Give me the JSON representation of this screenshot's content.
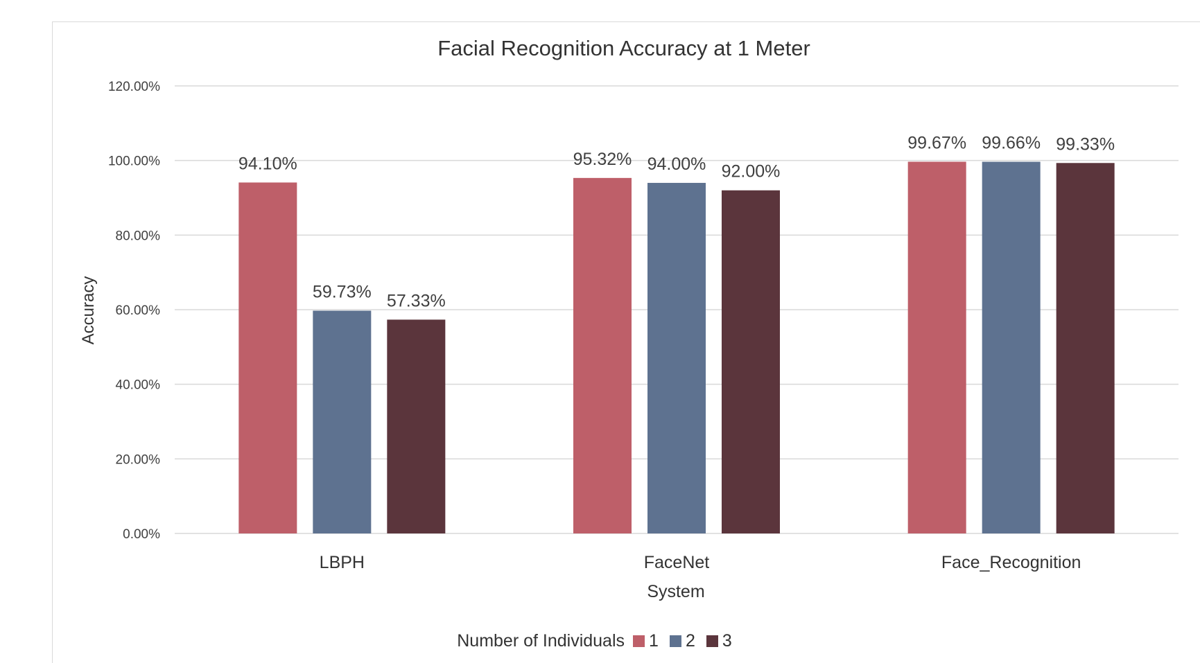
{
  "chart_data": {
    "type": "bar",
    "title": "Facial Recognition Accuracy at 1 Meter",
    "xlabel": "System",
    "ylabel": "Accuracy",
    "categories": [
      "LBPH",
      "FaceNet",
      "Face_Recognition"
    ],
    "series": [
      {
        "name": "1",
        "color": "#be5f69",
        "values": [
          94.1,
          95.32,
          99.67
        ],
        "labels": [
          "94.10%",
          "95.32%",
          "99.67%"
        ]
      },
      {
        "name": "2",
        "color": "#5e7290",
        "values": [
          59.73,
          94.0,
          99.66
        ],
        "labels": [
          "59.73%",
          "94.00%",
          "99.66%"
        ]
      },
      {
        "name": "3",
        "color": "#5b353c",
        "values": [
          57.33,
          92.0,
          99.33
        ],
        "labels": [
          "57.33%",
          "92.00%",
          "99.33%"
        ]
      }
    ],
    "ylim": [
      0,
      120
    ],
    "yticks": [
      0,
      20,
      40,
      60,
      80,
      100,
      120
    ],
    "ytick_labels": [
      "0.00%",
      "20.00%",
      "40.00%",
      "60.00%",
      "80.00%",
      "100.00%",
      "120.00%"
    ],
    "grid": true,
    "legend": {
      "title": "Number of Individuals",
      "placement": "bottom"
    }
  }
}
